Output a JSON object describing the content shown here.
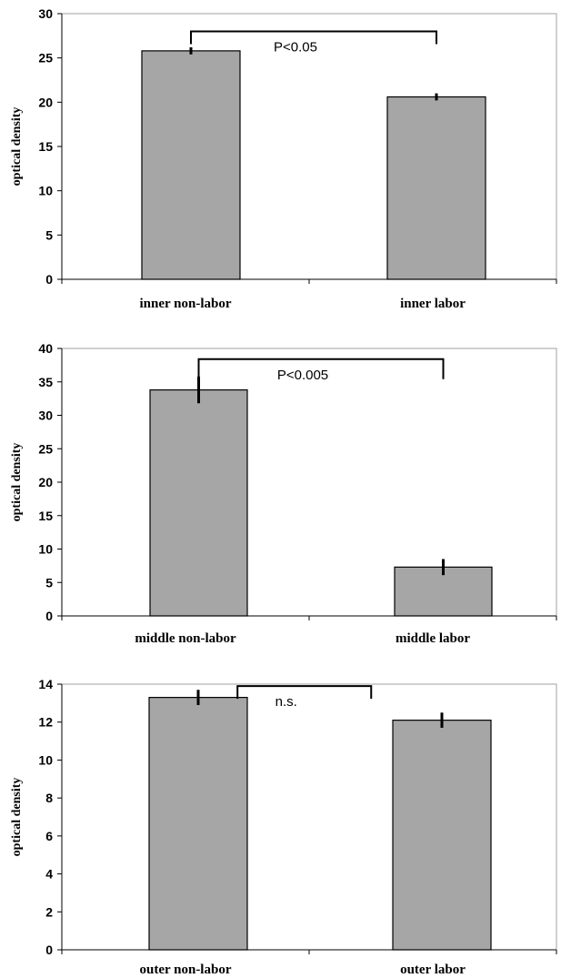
{
  "colors": {
    "bar": "#a6a6a6",
    "bar_stroke": "#000000",
    "plot_border": "#a0a0a0",
    "axis": "#000000"
  },
  "chart_data": [
    {
      "type": "bar",
      "ylabel": "optical density",
      "ylim": [
        0,
        30
      ],
      "yticks": [
        0,
        5,
        10,
        15,
        20,
        25,
        30
      ],
      "categories": [
        "inner  non-labor",
        "inner labor"
      ],
      "values": [
        25.8,
        20.6
      ],
      "errors": [
        0.4,
        0.4
      ],
      "annotation": {
        "text": "P<0.05",
        "between": [
          0,
          1
        ],
        "bracket_y": 28.0
      },
      "grid": false
    },
    {
      "type": "bar",
      "ylabel": "optical density",
      "ylim": [
        0,
        40
      ],
      "yticks": [
        0,
        5,
        10,
        15,
        20,
        25,
        30,
        35,
        40
      ],
      "categories": [
        "middle  non-labor",
        "middle labor"
      ],
      "values": [
        33.8,
        7.3
      ],
      "errors": [
        2.0,
        1.2
      ],
      "annotation": {
        "text": "P<0.005",
        "between": [
          0,
          1
        ],
        "bracket_y": 38.4
      },
      "grid": false
    },
    {
      "type": "bar",
      "ylabel": "optical density",
      "ylim": [
        0,
        14
      ],
      "yticks": [
        0,
        2,
        4,
        6,
        8,
        10,
        12,
        14
      ],
      "categories": [
        "outer non-labor",
        "outer labor"
      ],
      "values": [
        13.3,
        12.1
      ],
      "errors": [
        0.4,
        0.4
      ],
      "annotation": {
        "text": "n.s.",
        "between": [
          0,
          1
        ],
        "bracket_y": 13.9
      },
      "grid": false
    }
  ]
}
